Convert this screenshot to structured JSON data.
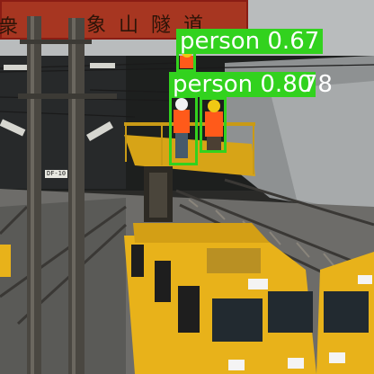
{
  "sign": {
    "text": "象山隧道",
    "partial_text": "衆"
  },
  "pole_tag": "DF-10",
  "detections": [
    {
      "label": "person",
      "score": "0.67"
    },
    {
      "label": "person",
      "score": "0.80"
    },
    {
      "label": "person",
      "score": "0.78"
    }
  ],
  "colors": {
    "box": "#32d21e",
    "train": "#e8b21a",
    "vest": "#ff5a1a"
  }
}
